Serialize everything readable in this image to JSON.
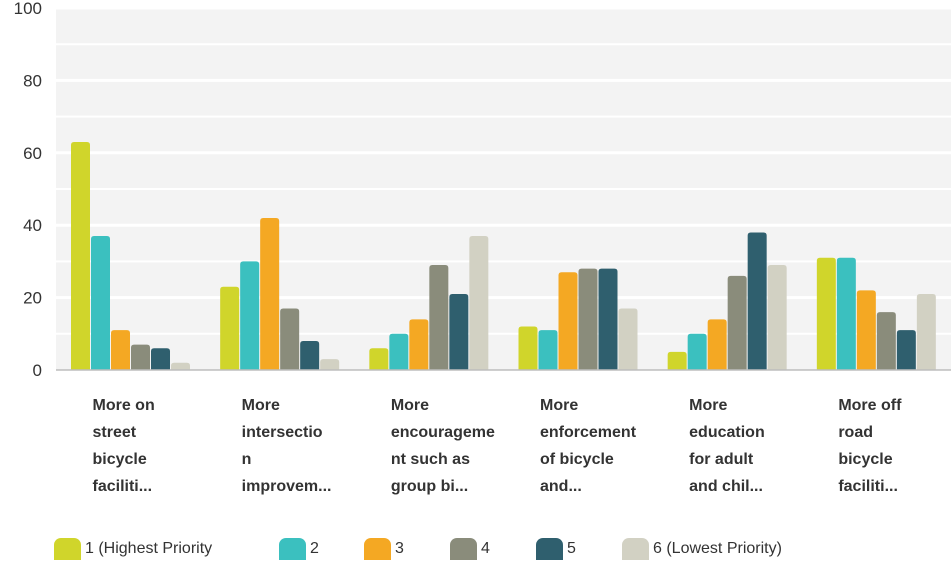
{
  "chart_data": {
    "type": "bar",
    "categories": [
      [
        "More on",
        "street",
        "bicycle",
        "faciliti..."
      ],
      [
        "More",
        "intersectio",
        "n",
        "improvem..."
      ],
      [
        "More",
        "encourageme",
        "nt such as",
        "group bi..."
      ],
      [
        "More",
        "enforcement",
        "of bicycle",
        "and..."
      ],
      [
        "More",
        "education",
        "for adult",
        "and chil..."
      ],
      [
        "More off",
        "road",
        "bicycle",
        "faciliti..."
      ]
    ],
    "series": [
      {
        "name": "1 (Highest Priority",
        "color": "#d0d52b",
        "values": [
          63,
          23,
          6,
          12,
          5,
          31
        ]
      },
      {
        "name": "2",
        "color": "#3bc0bf",
        "values": [
          37,
          30,
          10,
          11,
          10,
          31
        ]
      },
      {
        "name": "3",
        "color": "#f4a823",
        "values": [
          11,
          42,
          14,
          27,
          14,
          22
        ]
      },
      {
        "name": "4",
        "color": "#8a8c7b",
        "values": [
          7,
          17,
          29,
          28,
          26,
          16
        ]
      },
      {
        "name": "5",
        "color": "#2f5f6e",
        "values": [
          6,
          8,
          21,
          28,
          38,
          11
        ]
      },
      {
        "name": "6 (Lowest Priority)",
        "color": "#d2d1c3",
        "values": [
          2,
          3,
          37,
          17,
          29,
          21
        ]
      }
    ],
    "yticks": [
      0,
      20,
      40,
      60,
      80,
      100
    ],
    "ylim": [
      0,
      100
    ],
    "grid": true,
    "legend": "bottom"
  }
}
